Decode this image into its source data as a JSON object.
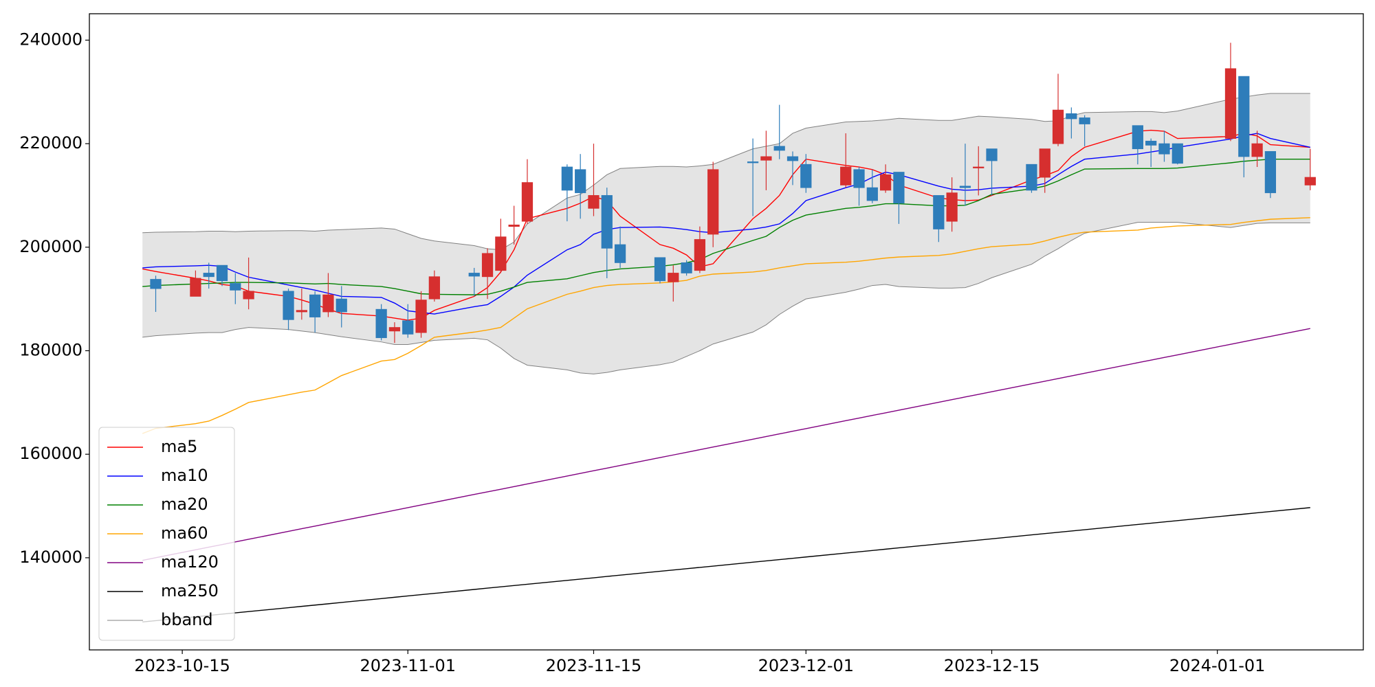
{
  "chart_data": {
    "type": "candlestick",
    "x": [
      "2023-10-12",
      "2023-10-13",
      "2023-10-16",
      "2023-10-17",
      "2023-10-18",
      "2023-10-19",
      "2023-10-20",
      "2023-10-23",
      "2023-10-24",
      "2023-10-25",
      "2023-10-26",
      "2023-10-27",
      "2023-10-30",
      "2023-10-31",
      "2023-11-01",
      "2023-11-02",
      "2023-11-03",
      "2023-11-06",
      "2023-11-07",
      "2023-11-08",
      "2023-11-09",
      "2023-11-10",
      "2023-11-13",
      "2023-11-14",
      "2023-11-15",
      "2023-11-16",
      "2023-11-17",
      "2023-11-20",
      "2023-11-21",
      "2023-11-22",
      "2023-11-23",
      "2023-11-24",
      "2023-11-27",
      "2023-11-28",
      "2023-11-29",
      "2023-11-30",
      "2023-12-01",
      "2023-12-04",
      "2023-12-05",
      "2023-12-06",
      "2023-12-07",
      "2023-12-08",
      "2023-12-11",
      "2023-12-12",
      "2023-12-13",
      "2023-12-14",
      "2023-12-15",
      "2023-12-18",
      "2023-12-19",
      "2023-12-20",
      "2023-12-21",
      "2023-12-22",
      "2023-12-26",
      "2023-12-27",
      "2023-12-28",
      "2023-12-29",
      "2024-01-02",
      "2024-01-03",
      "2024-01-04",
      "2024-01-05",
      "2024-01-08"
    ],
    "series": [
      {
        "name": "ma5",
        "color": "#ff0000",
        "values": [
          195800,
          195300,
          194000,
          193500,
          192800,
          192500,
          191500,
          190500,
          189800,
          189000,
          188000,
          187200,
          186700,
          186300,
          185900,
          186300,
          187800,
          190500,
          192200,
          195200,
          199500,
          205500,
          207500,
          208500,
          209800,
          209000,
          206000,
          200500,
          199800,
          198500,
          196200,
          196800,
          205500,
          207500,
          210000,
          214000,
          217000,
          215800,
          215500,
          215000,
          214000,
          212000,
          209500,
          209200,
          209000,
          209100,
          210000,
          213000,
          213800,
          214800,
          217500,
          219300,
          222400,
          222600,
          222400,
          221000,
          221400,
          222000,
          221500,
          219800,
          219300
        ]
      },
      {
        "name": "ma10",
        "color": "#0000ff",
        "values": [
          196000,
          196200,
          196400,
          196500,
          196300,
          195200,
          194200,
          192700,
          192200,
          191700,
          191100,
          190500,
          190300,
          189200,
          187700,
          187400,
          187100,
          188500,
          188900,
          190500,
          192300,
          194600,
          199500,
          200500,
          202500,
          203400,
          203800,
          203900,
          203700,
          203400,
          203000,
          202800,
          203500,
          203900,
          204500,
          206500,
          209000,
          211500,
          212200,
          213500,
          214500,
          214000,
          211800,
          211200,
          211000,
          211100,
          211400,
          211800,
          212300,
          214000,
          215600,
          217000,
          218000,
          218400,
          218800,
          219300,
          220900,
          221500,
          222000,
          221000,
          219300
        ]
      },
      {
        "name": "ma20",
        "color": "#008000",
        "values": [
          192400,
          192600,
          192900,
          193000,
          193100,
          193200,
          193200,
          193100,
          193000,
          192900,
          193000,
          192800,
          192400,
          192000,
          191500,
          191000,
          190900,
          190800,
          190900,
          191500,
          192300,
          193200,
          193900,
          194500,
          195100,
          195500,
          195800,
          196300,
          196600,
          197000,
          197600,
          198800,
          201300,
          202100,
          203800,
          205200,
          206200,
          207500,
          207700,
          208000,
          208400,
          208400,
          208000,
          208000,
          208100,
          209000,
          210200,
          211300,
          211800,
          212800,
          214000,
          215100,
          215200,
          215200,
          215200,
          215300,
          216300,
          216600,
          216800,
          217000,
          217000
        ]
      },
      {
        "name": "ma60",
        "color": "#ffa500",
        "values": [
          164000,
          165000,
          165900,
          166400,
          167500,
          168700,
          170000,
          171500,
          172000,
          172400,
          173800,
          175200,
          178000,
          178300,
          179500,
          181000,
          182600,
          183600,
          184000,
          184500,
          186300,
          188100,
          190900,
          191500,
          192200,
          192600,
          192800,
          193100,
          193300,
          193600,
          194400,
          194800,
          195200,
          195500,
          196000,
          196400,
          196800,
          197100,
          197300,
          197600,
          197900,
          198100,
          198400,
          198700,
          199200,
          199700,
          200100,
          200600,
          201200,
          201900,
          202500,
          202900,
          203300,
          203700,
          203900,
          204100,
          204400,
          204800,
          205100,
          205400,
          205700
        ]
      },
      {
        "name": "ma120",
        "color": "#800080",
        "values": [
          139500,
          140010,
          141540,
          142050,
          142550,
          143060,
          143570,
          145100,
          145610,
          146120,
          146630,
          147140,
          148660,
          149170,
          149680,
          150190,
          150700,
          152230,
          152730,
          153240,
          153750,
          154260,
          155790,
          156300,
          156810,
          157320,
          157820,
          159350,
          159860,
          160370,
          160880,
          161390,
          162910,
          163420,
          163930,
          164440,
          164950,
          166480,
          166990,
          167500,
          168000,
          168510,
          170040,
          170550,
          171060,
          171570,
          172080,
          173600,
          174110,
          174620,
          175130,
          175640,
          177680,
          178180,
          178690,
          179200,
          181240,
          181750,
          182260,
          182770,
          184290
        ]
      },
      {
        "name": "ma250",
        "color": "#000000",
        "values": [
          127600,
          127850,
          128600,
          128860,
          129110,
          129360,
          129610,
          130360,
          130610,
          130860,
          131110,
          131370,
          132120,
          132370,
          132620,
          132870,
          133120,
          133880,
          134130,
          134380,
          134630,
          134880,
          135630,
          135880,
          136130,
          136390,
          136640,
          137390,
          137640,
          137890,
          138140,
          138390,
          139150,
          139400,
          139650,
          139900,
          140150,
          140900,
          141150,
          141410,
          141660,
          141910,
          142660,
          142910,
          143160,
          143410,
          143660,
          144420,
          144670,
          144920,
          145170,
          145420,
          146430,
          146680,
          146930,
          147180,
          148180,
          148430,
          148680,
          148940,
          149690
        ]
      }
    ],
    "bband": {
      "name": "bband",
      "color": "#808080",
      "fill": "#e4e4e4",
      "upper": [
        202800,
        202900,
        203000,
        203100,
        203100,
        203000,
        203100,
        203200,
        203200,
        203100,
        203300,
        203400,
        203700,
        203500,
        202600,
        201700,
        201200,
        200300,
        199700,
        199500,
        201000,
        204500,
        209500,
        210200,
        212000,
        214000,
        215200,
        215600,
        215600,
        215500,
        215700,
        216000,
        219000,
        219500,
        220000,
        222000,
        223000,
        224200,
        224300,
        224400,
        224600,
        224900,
        224500,
        224500,
        224900,
        225300,
        225200,
        224700,
        224300,
        224400,
        225400,
        226000,
        226200,
        226200,
        226000,
        226300,
        228600,
        229000,
        229400,
        229700,
        229700
      ],
      "lower": [
        182600,
        182900,
        183400,
        183500,
        183500,
        184100,
        184500,
        184100,
        183800,
        183500,
        183100,
        182700,
        181700,
        181200,
        181200,
        181600,
        182000,
        182400,
        182100,
        180500,
        178500,
        177200,
        176300,
        175700,
        175500,
        175800,
        176300,
        177300,
        177800,
        178900,
        180000,
        181300,
        183600,
        185000,
        187000,
        188600,
        190000,
        191300,
        191900,
        192600,
        192800,
        192400,
        192100,
        192100,
        192200,
        193000,
        194100,
        196700,
        198300,
        199700,
        201300,
        202700,
        204800,
        204800,
        204800,
        204800,
        203800,
        204200,
        204600,
        204700,
        204700
      ]
    },
    "candles": {
      "up_color": "#d62f2f",
      "down_color": "#2e7dba",
      "x": [
        "2023-10-13",
        "2023-10-16",
        "2023-10-17",
        "2023-10-18",
        "2023-10-19",
        "2023-10-20",
        "2023-10-23",
        "2023-10-24",
        "2023-10-25",
        "2023-10-26",
        "2023-10-27",
        "2023-10-30",
        "2023-10-31",
        "2023-11-01",
        "2023-11-02",
        "2023-11-03",
        "2023-11-06",
        "2023-11-07",
        "2023-11-08",
        "2023-11-09",
        "2023-11-10",
        "2023-11-13",
        "2023-11-14",
        "2023-11-15",
        "2023-11-16",
        "2023-11-17",
        "2023-11-20",
        "2023-11-21",
        "2023-11-22",
        "2023-11-23",
        "2023-11-24",
        "2023-11-27",
        "2023-11-28",
        "2023-11-29",
        "2023-11-30",
        "2023-12-01",
        "2023-12-04",
        "2023-12-05",
        "2023-12-06",
        "2023-12-07",
        "2023-12-08",
        "2023-12-11",
        "2023-12-12",
        "2023-12-13",
        "2023-12-14",
        "2023-12-15",
        "2023-12-18",
        "2023-12-19",
        "2023-12-20",
        "2023-12-21",
        "2023-12-22",
        "2023-12-26",
        "2023-12-27",
        "2023-12-28",
        "2023-12-29",
        "2024-01-02",
        "2024-01-03",
        "2024-01-04",
        "2024-01-05",
        "2024-01-08"
      ],
      "open": [
        193800,
        190500,
        195000,
        196500,
        193000,
        190000,
        191500,
        187500,
        190800,
        187500,
        190000,
        188000,
        183800,
        185800,
        183500,
        190000,
        195000,
        194300,
        195500,
        204000,
        205000,
        215500,
        215000,
        207500,
        210000,
        200500,
        198000,
        193300,
        197000,
        195500,
        202500,
        216500,
        216800,
        219500,
        217500,
        216000,
        212000,
        215000,
        211500,
        211000,
        214500,
        210000,
        205000,
        211800,
        215300,
        219000,
        216000,
        213500,
        220000,
        225800,
        225000,
        223500,
        220500,
        220000,
        220000,
        221000,
        233000,
        217500,
        218500,
        212000
      ],
      "high": [
        194500,
        195500,
        197000,
        196500,
        195000,
        198000,
        192000,
        192000,
        191500,
        195000,
        192500,
        189000,
        185500,
        189000,
        191500,
        195500,
        196000,
        199800,
        205500,
        208000,
        217000,
        216000,
        218000,
        220000,
        211500,
        204000,
        198000,
        196500,
        197500,
        204000,
        216500,
        221000,
        222500,
        227500,
        218500,
        218000,
        222000,
        215500,
        215000,
        216000,
        214500,
        210000,
        213500,
        220000,
        219500,
        219000,
        216000,
        219000,
        233500,
        227000,
        225500,
        223500,
        221000,
        222500,
        220000,
        239500,
        233000,
        222500,
        218500,
        219000
      ],
      "low": [
        187500,
        190500,
        192000,
        192500,
        189000,
        188000,
        184000,
        186000,
        183500,
        186500,
        184500,
        182000,
        181500,
        182500,
        182500,
        189500,
        190500,
        190000,
        195000,
        200500,
        204500,
        205000,
        205500,
        206000,
        194000,
        196000,
        193000,
        189500,
        194500,
        195000,
        200000,
        206000,
        211000,
        217000,
        212000,
        210500,
        211500,
        208000,
        208500,
        210500,
        204500,
        201000,
        203000,
        208000,
        210000,
        210000,
        210500,
        210500,
        219500,
        221000,
        219500,
        216000,
        215500,
        216500,
        216000,
        220500,
        213500,
        215500,
        209500,
        211000
      ],
      "close": [
        192000,
        194000,
        194300,
        193500,
        191700,
        191500,
        186000,
        187800,
        186500,
        190800,
        187500,
        182500,
        184500,
        183200,
        189800,
        194300,
        194400,
        198800,
        202000,
        204300,
        212500,
        211000,
        210500,
        210000,
        199800,
        197000,
        193500,
        195000,
        195000,
        201500,
        215000,
        216300,
        217500,
        218700,
        216700,
        211500,
        215500,
        211500,
        209000,
        214000,
        208500,
        203500,
        210500,
        211500,
        215500,
        216700,
        211000,
        219000,
        226500,
        224800,
        223800,
        219000,
        219700,
        218000,
        216200,
        234500,
        217500,
        220000,
        210500,
        213500
      ]
    },
    "xlim": [
      "2023-10-08",
      "2024-01-12"
    ],
    "xticks": [
      "2023-10-15",
      "2023-11-01",
      "2023-11-15",
      "2023-12-01",
      "2023-12-15",
      "2024-01-01"
    ],
    "ylim": [
      122200,
      245100
    ],
    "yticks": [
      140000,
      160000,
      180000,
      200000,
      220000,
      240000
    ],
    "grid": false,
    "legend": "lower left"
  }
}
